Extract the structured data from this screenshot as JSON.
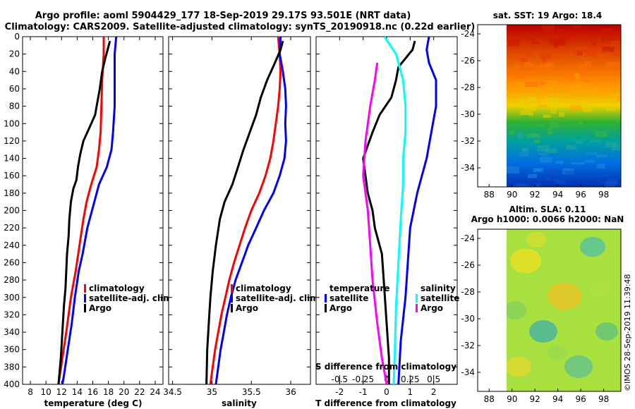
{
  "header": {
    "line1": "Argo profile: aoml 5904429_177 18-Sep-2019 29.17S 93.501E (NRT data)",
    "line2": "Climatology: CARS2009. Satellite-adjusted climatology: synTS_20190918.nc (0.22d earlier)"
  },
  "colors": {
    "climatology": "#ff0000",
    "satellite": "#0000ff",
    "argo": "#000000",
    "argo_salinity": "#ff00ff",
    "sat_salinity": "#00ffff"
  },
  "chart_data": [
    {
      "type": "line",
      "name": "temperature",
      "xlabel": "temperature (deg C)",
      "xlim": [
        7,
        25
      ],
      "ylim": [
        0,
        400
      ],
      "xticks": [
        8,
        10,
        12,
        14,
        16,
        18,
        20,
        22,
        24
      ],
      "yticks": [
        0,
        20,
        40,
        60,
        80,
        100,
        120,
        140,
        160,
        180,
        200,
        220,
        240,
        260,
        280,
        300,
        320,
        340,
        360,
        380,
        400
      ],
      "legend": [
        "climatology",
        "satellite-adj. clim.",
        "Argo"
      ],
      "series": [
        {
          "name": "climatology",
          "color": "#ff0000",
          "points": [
            [
              17.4,
              0
            ],
            [
              17.4,
              20
            ],
            [
              17.2,
              50
            ],
            [
              17.1,
              80
            ],
            [
              17.0,
              110
            ],
            [
              16.8,
              130
            ],
            [
              16.5,
              150
            ],
            [
              15.8,
              170
            ],
            [
              15.2,
              190
            ],
            [
              14.8,
              210
            ],
            [
              14.3,
              240
            ],
            [
              13.8,
              270
            ],
            [
              13.2,
              300
            ],
            [
              12.6,
              340
            ],
            [
              12.1,
              370
            ],
            [
              11.6,
              400
            ]
          ]
        },
        {
          "name": "satellite-adj. clim.",
          "color": "#0000ff",
          "points": [
            [
              19.0,
              0
            ],
            [
              18.8,
              20
            ],
            [
              18.8,
              50
            ],
            [
              18.8,
              80
            ],
            [
              18.6,
              110
            ],
            [
              18.4,
              130
            ],
            [
              17.8,
              150
            ],
            [
              16.8,
              170
            ],
            [
              16.2,
              190
            ],
            [
              15.3,
              220
            ],
            [
              14.7,
              250
            ],
            [
              14.2,
              270
            ],
            [
              13.7,
              300
            ],
            [
              13.3,
              330
            ],
            [
              12.8,
              360
            ],
            [
              12.3,
              390
            ],
            [
              12.1,
              400
            ]
          ]
        },
        {
          "name": "Argo",
          "color": "#000000",
          "points": [
            [
              18.2,
              5
            ],
            [
              17.9,
              15
            ],
            [
              17.6,
              25
            ],
            [
              17.2,
              40
            ],
            [
              16.9,
              60
            ],
            [
              16.6,
              75
            ],
            [
              16.3,
              90
            ],
            [
              15.8,
              100
            ],
            [
              15.3,
              110
            ],
            [
              14.8,
              120
            ],
            [
              14.4,
              135
            ],
            [
              14.1,
              150
            ],
            [
              13.9,
              165
            ],
            [
              13.5,
              175
            ],
            [
              13.2,
              190
            ],
            [
              13.0,
              210
            ],
            [
              12.9,
              230
            ],
            [
              12.7,
              250
            ],
            [
              12.6,
              270
            ],
            [
              12.5,
              290
            ],
            [
              12.3,
              310
            ],
            [
              12.1,
              340
            ],
            [
              11.9,
              370
            ],
            [
              11.6,
              400
            ]
          ]
        }
      ]
    },
    {
      "type": "line",
      "name": "salinity",
      "xlabel": "salinity",
      "xlim": [
        34.45,
        36.25
      ],
      "ylim": [
        0,
        400
      ],
      "xticks": [
        34.5,
        35,
        35.5,
        36
      ],
      "xticklabels": [
        "34.5",
        "35",
        "35.5",
        "36"
      ],
      "legend": [
        "climatology",
        "satellite-adj. clim.",
        "Argo"
      ],
      "series": [
        {
          "name": "climatology",
          "color": "#ff0000",
          "points": [
            [
              35.84,
              0
            ],
            [
              35.86,
              20
            ],
            [
              35.87,
              40
            ],
            [
              35.86,
              60
            ],
            [
              35.84,
              80
            ],
            [
              35.81,
              100
            ],
            [
              35.78,
              120
            ],
            [
              35.74,
              140
            ],
            [
              35.68,
              160
            ],
            [
              35.6,
              180
            ],
            [
              35.5,
              200
            ],
            [
              35.42,
              220
            ],
            [
              35.35,
              240
            ],
            [
              35.28,
              260
            ],
            [
              35.22,
              280
            ],
            [
              35.17,
              300
            ],
            [
              35.12,
              320
            ],
            [
              35.08,
              340
            ],
            [
              35.04,
              360
            ],
            [
              35.01,
              380
            ],
            [
              34.98,
              400
            ]
          ]
        },
        {
          "name": "satellite-adj. clim.",
          "color": "#0000ff",
          "points": [
            [
              35.87,
              0
            ],
            [
              35.86,
              20
            ],
            [
              35.9,
              40
            ],
            [
              35.93,
              60
            ],
            [
              35.94,
              80
            ],
            [
              35.93,
              100
            ],
            [
              35.94,
              120
            ],
            [
              35.92,
              140
            ],
            [
              35.86,
              160
            ],
            [
              35.78,
              180
            ],
            [
              35.66,
              200
            ],
            [
              35.56,
              220
            ],
            [
              35.46,
              240
            ],
            [
              35.38,
              260
            ],
            [
              35.3,
              280
            ],
            [
              35.24,
              300
            ],
            [
              35.19,
              320
            ],
            [
              35.15,
              340
            ],
            [
              35.11,
              360
            ],
            [
              35.08,
              380
            ],
            [
              35.05,
              400
            ]
          ]
        },
        {
          "name": "Argo",
          "color": "#000000",
          "points": [
            [
              35.9,
              5
            ],
            [
              35.87,
              15
            ],
            [
              35.8,
              30
            ],
            [
              35.7,
              50
            ],
            [
              35.62,
              70
            ],
            [
              35.56,
              90
            ],
            [
              35.48,
              110
            ],
            [
              35.4,
              130
            ],
            [
              35.33,
              150
            ],
            [
              35.26,
              170
            ],
            [
              35.16,
              190
            ],
            [
              35.1,
              210
            ],
            [
              35.05,
              240
            ],
            [
              35.01,
              270
            ],
            [
              34.98,
              300
            ],
            [
              34.96,
              330
            ],
            [
              34.94,
              360
            ],
            [
              34.93,
              400
            ]
          ]
        }
      ]
    },
    {
      "type": "line",
      "name": "difference",
      "xlabel": "T difference from climatology",
      "toplabel": "S difference from climatology",
      "xlim": [
        -3,
        3
      ],
      "ylim": [
        0,
        400
      ],
      "xticks": [
        -2,
        -1,
        0,
        1,
        2
      ],
      "xticklabels": [
        "-2",
        "-1",
        "0",
        "1",
        "2"
      ],
      "stick_values": [
        -0.5,
        -0.25,
        0,
        0.25,
        0.5
      ],
      "stick_labels": [
        "-0.5",
        "-0.25",
        "0",
        "0.25",
        "0.5"
      ],
      "legend_temperature_title": "temperature",
      "legend_salinity_title": "salinity",
      "legend_temperature": [
        "satellite",
        "Argo"
      ],
      "legend_salinity": [
        "satellite",
        "Argo"
      ],
      "series": [
        {
          "name": "T satellite",
          "color": "#0000ff",
          "points": [
            [
              1.8,
              0
            ],
            [
              1.7,
              15
            ],
            [
              1.8,
              30
            ],
            [
              2.1,
              50
            ],
            [
              2.1,
              80
            ],
            [
              1.9,
              110
            ],
            [
              1.7,
              140
            ],
            [
              1.5,
              160
            ],
            [
              1.3,
              180
            ],
            [
              1.0,
              220
            ],
            [
              0.9,
              260
            ],
            [
              0.8,
              300
            ],
            [
              0.6,
              350
            ],
            [
              0.5,
              400
            ]
          ]
        },
        {
          "name": "T Argo",
          "color": "#000000",
          "points": [
            [
              1.2,
              5
            ],
            [
              1.1,
              15
            ],
            [
              0.8,
              25
            ],
            [
              0.5,
              35
            ],
            [
              0.4,
              50
            ],
            [
              0.2,
              70
            ],
            [
              -0.3,
              90
            ],
            [
              -0.6,
              110
            ],
            [
              -1.0,
              140
            ],
            [
              -0.9,
              160
            ],
            [
              -0.8,
              180
            ],
            [
              -0.6,
              200
            ],
            [
              -0.5,
              220
            ],
            [
              -0.2,
              250
            ],
            [
              -0.1,
              290
            ],
            [
              0.0,
              330
            ],
            [
              0.1,
              370
            ],
            [
              0.1,
              400
            ]
          ]
        },
        {
          "name": "S satellite",
          "color": "#00ffff",
          "points": [
            [
              -0.1,
              0
            ],
            [
              0.4,
              20
            ],
            [
              0.7,
              50
            ],
            [
              0.8,
              80
            ],
            [
              0.8,
              110
            ],
            [
              0.7,
              140
            ],
            [
              0.7,
              170
            ],
            [
              0.6,
              210
            ],
            [
              0.5,
              260
            ],
            [
              0.4,
              310
            ],
            [
              0.35,
              360
            ],
            [
              0.3,
              400
            ]
          ]
        },
        {
          "name": "S Argo",
          "color": "#ff00ff",
          "points": [
            [
              -0.4,
              30
            ],
            [
              -0.5,
              50
            ],
            [
              -0.7,
              80
            ],
            [
              -0.9,
              120
            ],
            [
              -1.0,
              160
            ],
            [
              -0.8,
              200
            ],
            [
              -0.7,
              240
            ],
            [
              -0.6,
              280
            ],
            [
              -0.4,
              330
            ],
            [
              -0.2,
              370
            ],
            [
              0.0,
              400
            ]
          ]
        }
      ]
    }
  ],
  "sst_map": {
    "title": "sat. SST: 19 Argo: 18.4",
    "xticks": [
      88,
      90,
      92,
      94,
      96,
      98
    ],
    "yticks": [
      -24,
      -26,
      -28,
      -30,
      -32,
      -34
    ]
  },
  "sla_map": {
    "title": "Altim. SLA: 0.11",
    "subtitle": "Argo h1000: 0.0066 h2000: NaN",
    "xticks": [
      88,
      90,
      92,
      94,
      96,
      98
    ],
    "yticks": [
      -24,
      -26,
      -28,
      -30,
      -32,
      -34
    ]
  },
  "credit": "©IMOS 28-Sep-2019 11:39:48"
}
